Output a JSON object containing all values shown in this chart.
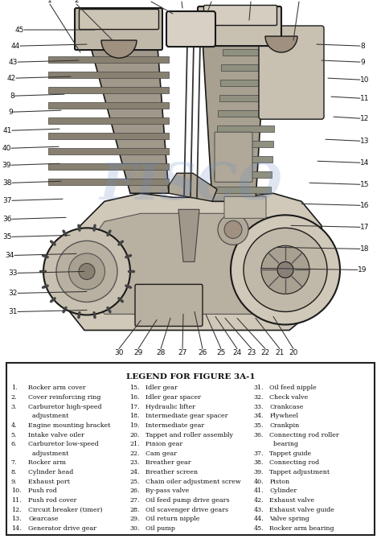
{
  "title": "LEGEND FOR FIGURE 3A-1",
  "page_bg": "#ffffff",
  "legend_bg": "#ffffff",
  "border_color": "#222222",
  "text_color": "#111111",
  "watermark_text": "FISCO",
  "watermark_color": "#7090c8",
  "watermark_alpha": 0.22,
  "col1_items": [
    [
      "1.",
      "Rocker arm cover"
    ],
    [
      "2.",
      "Cover reinforcing ring"
    ],
    [
      "3.",
      "Carburetor high-speed"
    ],
    [
      "",
      "  adjustment"
    ],
    [
      "4.",
      "Engine mounting bracket"
    ],
    [
      "5.",
      "Intake valve oiler"
    ],
    [
      "6.",
      "Carburetor low-speed"
    ],
    [
      "",
      "  adjustment"
    ],
    [
      "7.",
      "Rocker arm"
    ],
    [
      "8.",
      "Cylinder head"
    ],
    [
      "9.",
      "Exhaust port"
    ],
    [
      "10.",
      "Push rod"
    ],
    [
      "11.",
      "Push rod cover"
    ],
    [
      "12.",
      "Circuit breaker (timer)"
    ],
    [
      "13.",
      "Gearcase"
    ],
    [
      "14.",
      "Generator drive gear"
    ]
  ],
  "col2_items": [
    [
      "15.",
      "Idler gear"
    ],
    [
      "16.",
      "Idler gear spacer"
    ],
    [
      "17.",
      "Hydraulic lifter"
    ],
    [
      "18.",
      "Intermediate gear spacer"
    ],
    [
      "19.",
      "Intermediate gear"
    ],
    [
      "20.",
      "Tappet and roller assembly"
    ],
    [
      "21.",
      "Pinion gear"
    ],
    [
      "22.",
      "Cam gear"
    ],
    [
      "23.",
      "Breather gear"
    ],
    [
      "24.",
      "Breather screen"
    ],
    [
      "25.",
      "Chain oiler adjustment screw"
    ],
    [
      "26.",
      "By-pass valve"
    ],
    [
      "27.",
      "Oil feed pump drive gears"
    ],
    [
      "28.",
      "Oil scavenger drive gears"
    ],
    [
      "29.",
      "Oil return nipple"
    ],
    [
      "30.",
      "Oil pump"
    ]
  ],
  "col3_items": [
    [
      "31.",
      "Oil feed nipple"
    ],
    [
      "32.",
      "Check valve"
    ],
    [
      "33.",
      "Crankcase"
    ],
    [
      "34.",
      "Flywheel"
    ],
    [
      "35.",
      "Crankpin"
    ],
    [
      "36.",
      "Connecting rod roller"
    ],
    [
      "",
      "  bearing"
    ],
    [
      "37.",
      "Tappet guide"
    ],
    [
      "38.",
      "Connecting rod"
    ],
    [
      "39.",
      "Tappet adjustment"
    ],
    [
      "40.",
      "Piston"
    ],
    [
      "41.",
      "Cylinder"
    ],
    [
      "42.",
      "Exhaust valve"
    ],
    [
      "43.",
      "Exhaust valve guide"
    ],
    [
      "44.",
      "Valve spring"
    ],
    [
      "45.",
      "Rocker arm bearing"
    ]
  ]
}
